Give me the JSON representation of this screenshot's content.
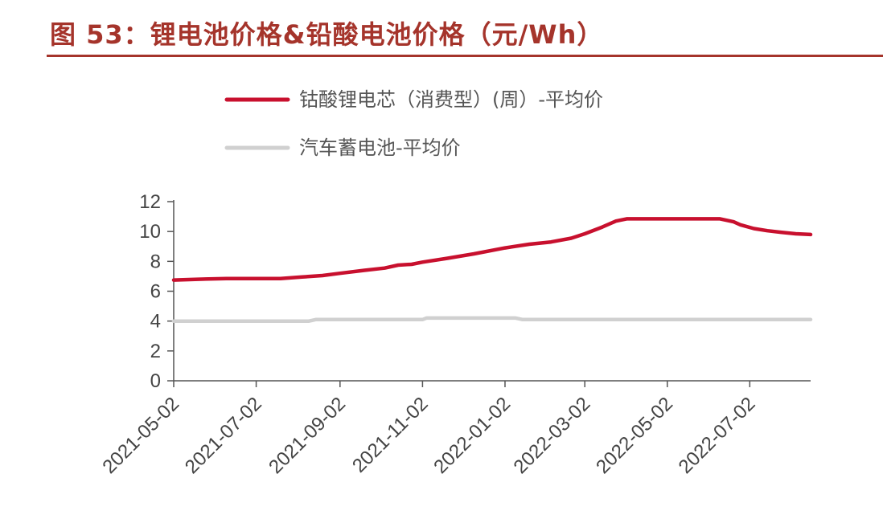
{
  "figure": {
    "title": "图 53：锂电池价格&铅酸电池价格（元/Wh）"
  },
  "colors": {
    "title": "#a5342b",
    "series1": "#c8102e",
    "series2": "#d0d0d0",
    "axis": "#555555"
  },
  "chart_data": {
    "type": "line",
    "title": "",
    "xlabel": "",
    "ylabel": "",
    "ylim": [
      0,
      12
    ],
    "yticks": [
      0,
      2,
      4,
      6,
      8,
      10,
      12
    ],
    "xlim": [
      "2021-05-02",
      "2022-08-16"
    ],
    "xticks": [
      "2021-05-02",
      "2021-07-02",
      "2021-09-02",
      "2021-11-02",
      "2022-01-02",
      "2022-03-02",
      "2022-05-02",
      "2022-07-02"
    ],
    "grid": false,
    "legend": "top",
    "series": [
      {
        "name": "钴酸锂电芯（消费型）(周）-平均价",
        "color": "#c8102e",
        "points": [
          [
            "2021-05-02",
            6.75
          ],
          [
            "2021-05-20",
            6.8
          ],
          [
            "2021-06-10",
            6.85
          ],
          [
            "2021-07-02",
            6.85
          ],
          [
            "2021-07-20",
            6.85
          ],
          [
            "2021-08-05",
            6.95
          ],
          [
            "2021-08-20",
            7.05
          ],
          [
            "2021-09-02",
            7.2
          ],
          [
            "2021-09-20",
            7.4
          ],
          [
            "2021-10-05",
            7.55
          ],
          [
            "2021-10-15",
            7.75
          ],
          [
            "2021-10-25",
            7.8
          ],
          [
            "2021-11-02",
            7.95
          ],
          [
            "2021-11-20",
            8.2
          ],
          [
            "2021-12-10",
            8.5
          ],
          [
            "2022-01-02",
            8.9
          ],
          [
            "2022-01-20",
            9.15
          ],
          [
            "2022-02-05",
            9.3
          ],
          [
            "2022-02-20",
            9.55
          ],
          [
            "2022-03-02",
            9.85
          ],
          [
            "2022-03-15",
            10.3
          ],
          [
            "2022-03-25",
            10.7
          ],
          [
            "2022-04-02",
            10.85
          ],
          [
            "2022-05-02",
            10.85
          ],
          [
            "2022-06-10",
            10.85
          ],
          [
            "2022-06-20",
            10.65
          ],
          [
            "2022-06-25",
            10.45
          ],
          [
            "2022-07-05",
            10.2
          ],
          [
            "2022-07-15",
            10.05
          ],
          [
            "2022-07-25",
            9.95
          ],
          [
            "2022-08-05",
            9.85
          ],
          [
            "2022-08-16",
            9.8
          ]
        ]
      },
      {
        "name": "汽车蓄电池-平均价",
        "color": "#d0d0d0",
        "points": [
          [
            "2021-05-02",
            4.0
          ],
          [
            "2021-08-10",
            4.0
          ],
          [
            "2021-08-15",
            4.1
          ],
          [
            "2021-11-02",
            4.1
          ],
          [
            "2021-11-05",
            4.2
          ],
          [
            "2022-01-10",
            4.2
          ],
          [
            "2022-01-15",
            4.1
          ],
          [
            "2022-08-16",
            4.1
          ]
        ]
      }
    ]
  }
}
